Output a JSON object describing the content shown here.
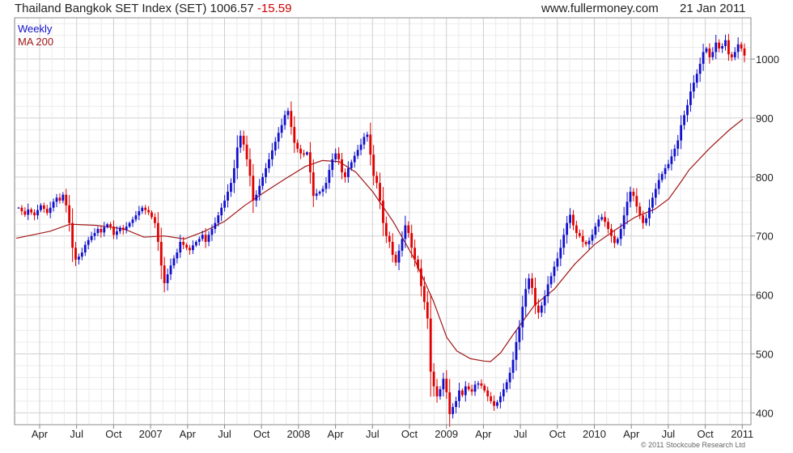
{
  "header": {
    "title": "Thailand Bangkok SET Index (SET) 1006.57",
    "change": "-15.59",
    "website": "www.fullermoney.com",
    "date": "21 Jan 2011"
  },
  "credit": "© 2011 Stockcube Research Ltd",
  "colors": {
    "up": "#1010cc",
    "down": "#e00000",
    "ma": "#a01818",
    "grid": "#dddddd",
    "axis": "#888888"
  },
  "chart_data": {
    "type": "candlestick",
    "title": "Thailand Bangkok SET Index (SET) 1006.57 -15.59",
    "ylim": [
      380,
      1070
    ],
    "yticks": [
      400,
      500,
      600,
      700,
      800,
      900,
      1000
    ],
    "xticks": [
      "Apr",
      "Jul",
      "Oct",
      "2007",
      "Apr",
      "Jul",
      "Oct",
      "2008",
      "Apr",
      "Jul",
      "Oct",
      "2009",
      "Apr",
      "Jul",
      "Oct",
      "2010",
      "Apr",
      "Jul",
      "Oct",
      "2011"
    ],
    "grid": true,
    "legend": [
      {
        "name": "Weekly",
        "color": "#1010cc"
      },
      {
        "name": "MA 200",
        "color": "#a01818"
      }
    ],
    "series": [
      {
        "name": "Weekly",
        "style": "candlestick",
        "note": "approximate weekly closes, Jan 2006 - Jan 2011",
        "values": [
          748,
          742,
          736,
          745,
          740,
          735,
          744,
          752,
          746,
          739,
          748,
          758,
          765,
          760,
          770,
          752,
          722,
          680,
          660,
          665,
          672,
          685,
          693,
          700,
          705,
          712,
          706,
          715,
          720,
          716,
          702,
          708,
          714,
          710,
          716,
          722,
          728,
          735,
          742,
          748,
          744,
          740,
          732,
          722,
          690,
          650,
          620,
          635,
          650,
          662,
          672,
          690,
          685,
          680,
          676,
          684,
          690,
          695,
          702,
          690,
          702,
          712,
          722,
          735,
          748,
          760,
          775,
          790,
          815,
          850,
          870,
          855,
          830,
          802,
          760,
          770,
          785,
          800,
          815,
          830,
          845,
          860,
          875,
          888,
          905,
          912,
          885,
          858,
          848,
          840,
          838,
          842,
          808,
          768,
          772,
          775,
          780,
          790,
          812,
          830,
          840,
          830,
          808,
          800,
          815,
          825,
          836,
          846,
          855,
          868,
          872,
          838,
          802,
          790,
          760,
          722,
          700,
          690,
          668,
          655,
          675,
          695,
          718,
          705,
          680,
          660,
          645,
          615,
          588,
          560,
          470,
          445,
          428,
          440,
          458,
          435,
          398,
          410,
          420,
          438,
          430,
          445,
          440,
          436,
          448,
          450,
          446,
          438,
          428,
          420,
          412,
          418,
          428,
          440,
          452,
          468,
          490,
          520,
          545,
          580,
          610,
          628,
          612,
          582,
          570,
          582,
          598,
          618,
          632,
          648,
          662,
          680,
          702,
          722,
          736,
          718,
          705,
          700,
          690,
          686,
          692,
          702,
          716,
          728,
          732,
          724,
          712,
          700,
          688,
          695,
          712,
          735,
          758,
          775,
          768,
          750,
          735,
          722,
          730,
          748,
          765,
          780,
          795,
          805,
          815,
          822,
          835,
          848,
          862,
          888,
          905,
          922,
          945,
          960,
          975,
          992,
          1012,
          1018,
          1003,
          1012,
          1028,
          1018,
          1022,
          1032,
          1008,
          1003,
          1012,
          1025,
          1018,
          1006
        ]
      },
      {
        "name": "MA 200",
        "style": "line",
        "points": [
          [
            0,
            696
          ],
          [
            0.05,
            708
          ],
          [
            0.08,
            720
          ],
          [
            0.12,
            718
          ],
          [
            0.16,
            712
          ],
          [
            0.19,
            698
          ],
          [
            0.22,
            700
          ],
          [
            0.25,
            695
          ],
          [
            0.28,
            708
          ],
          [
            0.31,
            725
          ],
          [
            0.34,
            752
          ],
          [
            0.37,
            775
          ],
          [
            0.4,
            797
          ],
          [
            0.43,
            818
          ],
          [
            0.455,
            828
          ],
          [
            0.48,
            826
          ],
          [
            0.505,
            808
          ],
          [
            0.53,
            775
          ],
          [
            0.56,
            725
          ],
          [
            0.59,
            665
          ],
          [
            0.62,
            590
          ],
          [
            0.64,
            528
          ],
          [
            0.655,
            505
          ],
          [
            0.675,
            492
          ],
          [
            0.695,
            488
          ],
          [
            0.705,
            487
          ],
          [
            0.72,
            502
          ],
          [
            0.74,
            535
          ],
          [
            0.77,
            582
          ],
          [
            0.8,
            610
          ],
          [
            0.83,
            652
          ],
          [
            0.86,
            686
          ],
          [
            0.89,
            710
          ],
          [
            0.92,
            732
          ],
          [
            0.95,
            746
          ],
          [
            0.97,
            763
          ],
          [
            0.99,
            795
          ],
          [
            1.0,
            812
          ],
          [
            1.03,
            848
          ],
          [
            1.06,
            880
          ],
          [
            1.08,
            898
          ]
        ]
      }
    ]
  }
}
